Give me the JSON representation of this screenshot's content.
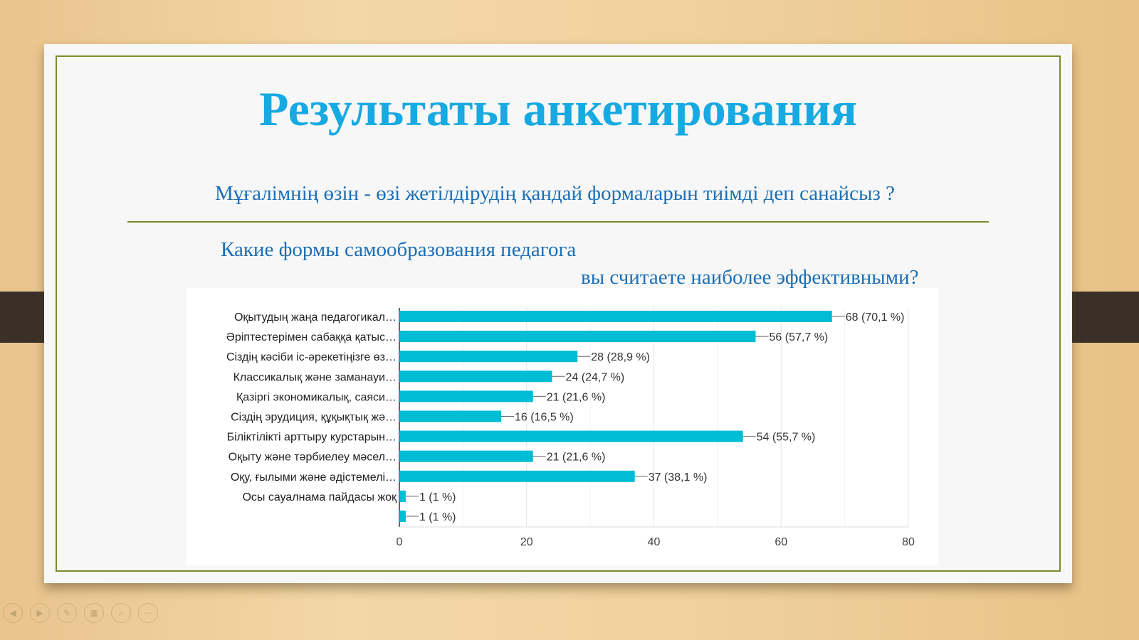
{
  "slide": {
    "title": "Результаты анкетирования",
    "question_kz": "Мұғалімнің өзін - өзі жетілдірудің қандай формаларын тиімді деп санайсыз ?",
    "question_ru_line1": "Какие формы самообразования педагога",
    "question_ru_line2": "вы считаете наиболее эффективными?"
  },
  "controls": [
    {
      "name": "previous-icon",
      "glyph": "◀"
    },
    {
      "name": "next-icon",
      "glyph": "▶"
    },
    {
      "name": "pen-icon",
      "glyph": "✎"
    },
    {
      "name": "slides-icon",
      "glyph": "▦"
    },
    {
      "name": "zoom-icon",
      "glyph": "⌕"
    },
    {
      "name": "more-icon",
      "glyph": "⋯"
    }
  ],
  "chart_data": {
    "type": "bar",
    "orientation": "horizontal",
    "bar_color": "#00bcd4",
    "categories": [
      "Оқытудың жаңа педагогикал…",
      "Әріптестерімен сабаққа қатыс…",
      "Сіздің кәсіби іс-әрекетіңізге өз…",
      "Классикалық және заманауи…",
      "Қазіргі экономикалық, саяси…",
      "Сіздің эрудиция, құқықтық жә…",
      "Біліктілікті арттыру курстарын…",
      "Оқыту және тәрбиелеу мәсел…",
      "Оқу, ғылыми және әдістемелі…",
      "Осы сауалнама пайдасы жоқ",
      ""
    ],
    "values": [
      68,
      56,
      28,
      24,
      21,
      16,
      54,
      21,
      37,
      1,
      1
    ],
    "data_labels": [
      "68 (70,1 %)",
      "56 (57,7 %)",
      "28 (28,9 %)",
      "24 (24,7 %)",
      "21 (21,6 %)",
      "16 (16,5 %)",
      "54 (55,7 %)",
      "21 (21,6 %)",
      "37 (38,1 %)",
      "1 (1 %)",
      "1 (1 %)"
    ],
    "xlim": [
      0,
      80
    ],
    "xticks": [
      "0",
      "20",
      "40",
      "60",
      "80"
    ],
    "grid": true
  }
}
